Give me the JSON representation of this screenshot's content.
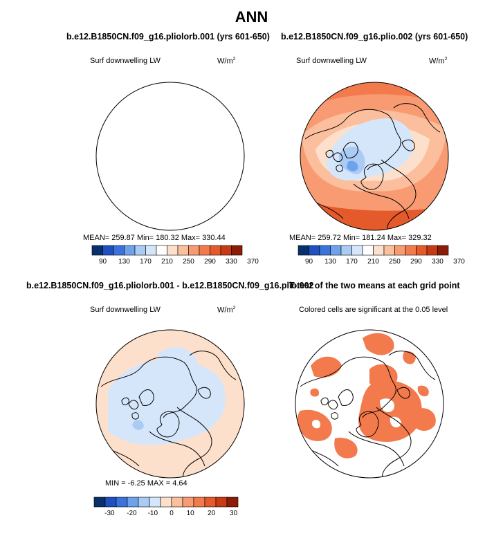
{
  "title": "ANN",
  "panels": [
    {
      "case": "b.e12.B1850CN.f09_g16.pliolorb.001 (yrs 601-650)",
      "variable": "Surf downwelling LW",
      "units": "W/m",
      "units_sup": "2",
      "stats": "MEAN=  259.87   Min=  180.32   Max=  330.44"
    },
    {
      "case": "b.e12.B1850CN.f09_g16.plio.002 (yrs 601-650)",
      "variable": "Surf downwelling LW",
      "units": "W/m",
      "units_sup": "2",
      "stats": "MEAN=  259.72   Min=  181.24   Max=  329.32"
    },
    {
      "case": "b.e12.B1850CN.f09_g16.pliolorb.001 - b.e12.B1850CN.f09_g16.plio.002",
      "variable": "Surf downwelling LW",
      "units": "W/m",
      "units_sup": "2",
      "stats": "MIN =   -6.25  MAX =    4.64"
    },
    {
      "case": "T-test of the two means at each grid point",
      "variable": "Colored cells are significant at the 0.05 level"
    }
  ],
  "colorbar_abs": {
    "ticks": [
      "90",
      "130",
      "170",
      "210",
      "250",
      "290",
      "330",
      "370"
    ],
    "colors": [
      "#08306b",
      "#1f4fc0",
      "#3a73dc",
      "#6fa2ec",
      "#a9cbf4",
      "#d5e6fb",
      "#ffffff",
      "#fde0cc",
      "#fbbf9e",
      "#f99b72",
      "#f27a4d",
      "#e55a2b",
      "#c83a14",
      "#8c1b07"
    ]
  },
  "colorbar_diff": {
    "ticks": [
      "-30",
      "-20",
      "-10",
      "0",
      "10",
      "20",
      "30"
    ],
    "colors": [
      "#08306b",
      "#1f4fc0",
      "#3a73dc",
      "#6fa2ec",
      "#a9cbf4",
      "#d5e6fb",
      "#fde0cc",
      "#fbbf9e",
      "#f99b72",
      "#f27a4d",
      "#e55a2b",
      "#c83a14",
      "#8c1b07"
    ]
  },
  "chart_data": [
    {
      "type": "heatmap",
      "title": "b.e12.B1850CN.f09_g16.pliolorb.001 (yrs 601-650)",
      "subtitle": "Surf downwelling LW",
      "units": "W/m2",
      "projection": "north-polar-stereographic",
      "mean": 259.87,
      "min": 180.32,
      "max": 330.44,
      "levels": [
        90,
        110,
        130,
        150,
        170,
        190,
        210,
        230,
        250,
        270,
        290,
        310,
        330,
        350,
        370
      ]
    },
    {
      "type": "heatmap",
      "title": "b.e12.B1850CN.f09_g16.plio.002 (yrs 601-650)",
      "subtitle": "Surf downwelling LW",
      "units": "W/m2",
      "projection": "north-polar-stereographic",
      "mean": 259.72,
      "min": 181.24,
      "max": 329.32,
      "levels": [
        90,
        110,
        130,
        150,
        170,
        190,
        210,
        230,
        250,
        270,
        290,
        310,
        330,
        350,
        370
      ]
    },
    {
      "type": "heatmap",
      "title": "b.e12.B1850CN.f09_g16.pliolorb.001 - b.e12.B1850CN.f09_g16.plio.002",
      "subtitle": "Surf downwelling LW",
      "units": "W/m2",
      "projection": "north-polar-stereographic",
      "min": -6.25,
      "max": 4.64,
      "levels": [
        -30,
        -25,
        -20,
        -15,
        -10,
        -5,
        0,
        5,
        10,
        15,
        20,
        25,
        30
      ]
    },
    {
      "type": "heatmap",
      "title": "T-test of the two means at each grid point",
      "subtitle": "Colored cells are significant at the 0.05 level",
      "projection": "north-polar-stereographic"
    }
  ]
}
